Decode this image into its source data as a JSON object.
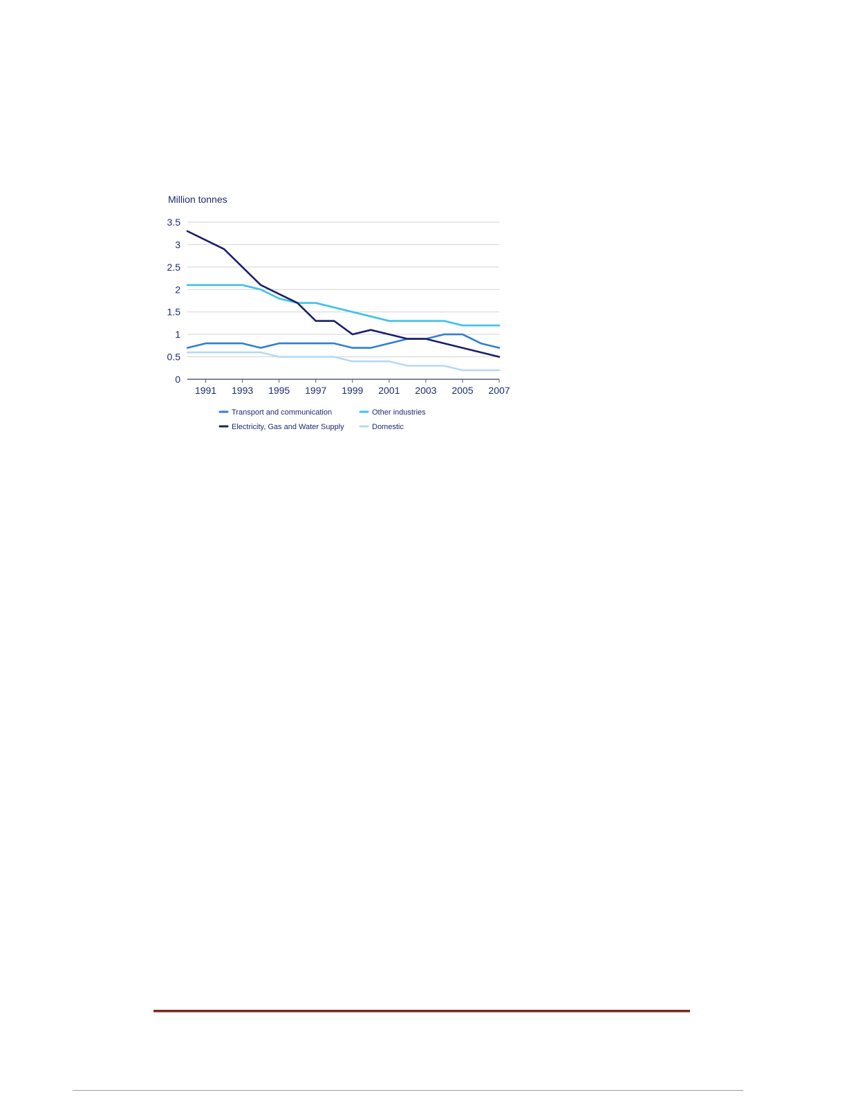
{
  "chart_data": {
    "type": "line",
    "ylabel": "Million tonnes",
    "xlabel": "",
    "ylim": [
      0,
      3.5
    ],
    "xlim": [
      1990,
      2007
    ],
    "y_ticks": [
      "0",
      "0.5",
      "1",
      "1.5",
      "2",
      "2.5",
      "3",
      "3.5"
    ],
    "x_ticks": [
      "1991",
      "1993",
      "1995",
      "1997",
      "1999",
      "2001",
      "2003",
      "2005",
      "2007"
    ],
    "grid": true,
    "legend_position": "bottom",
    "x": [
      1990,
      1991,
      1992,
      1993,
      1994,
      1995,
      1996,
      1997,
      1998,
      1999,
      2000,
      2001,
      2002,
      2003,
      2004,
      2005,
      2006,
      2007
    ],
    "series": [
      {
        "name": "Transport and communication",
        "color": "#2f7fd0",
        "values": [
          0.7,
          0.8,
          0.8,
          0.8,
          0.7,
          0.8,
          0.8,
          0.8,
          0.8,
          0.7,
          0.7,
          0.8,
          0.9,
          0.9,
          1.0,
          1.0,
          0.8,
          0.7
        ]
      },
      {
        "name": "Other industries",
        "color": "#3ec3e6",
        "values": [
          2.1,
          2.1,
          2.1,
          2.1,
          2.0,
          1.8,
          1.7,
          1.7,
          1.6,
          1.5,
          1.4,
          1.3,
          1.3,
          1.3,
          1.3,
          1.2,
          1.2,
          1.2
        ]
      },
      {
        "name": "Electricity, Gas and Water Supply",
        "color": "#1a1f6b",
        "values": [
          3.3,
          3.1,
          2.9,
          2.5,
          2.1,
          1.9,
          1.7,
          1.3,
          1.3,
          1.0,
          1.1,
          1.0,
          0.9,
          0.9,
          0.8,
          0.7,
          0.6,
          0.5
        ]
      },
      {
        "name": "Domestic",
        "color": "#b5d9f2",
        "values": [
          0.6,
          0.6,
          0.6,
          0.6,
          0.6,
          0.5,
          0.5,
          0.5,
          0.5,
          0.4,
          0.4,
          0.4,
          0.3,
          0.3,
          0.3,
          0.2,
          0.2,
          0.2
        ]
      }
    ]
  }
}
